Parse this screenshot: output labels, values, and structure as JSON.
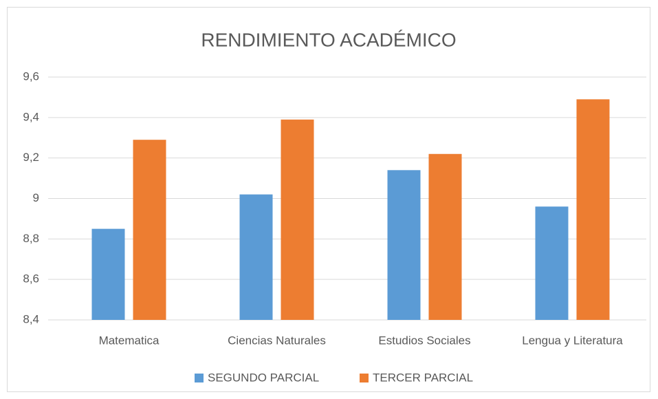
{
  "chart_data": {
    "type": "bar",
    "title": "RENDIMIENTO ACADÉMICO",
    "categories": [
      "Matematica",
      "Ciencias Naturales",
      "Estudios Sociales",
      "Lengua y Literatura"
    ],
    "series": [
      {
        "name": "SEGUNDO PARCIAL",
        "color": "#5b9bd5",
        "values": [
          8.85,
          9.02,
          9.14,
          8.96
        ]
      },
      {
        "name": "TERCER PARCIAL",
        "color": "#ed7d31",
        "values": [
          9.29,
          9.39,
          9.22,
          9.49
        ]
      }
    ],
    "ylim": [
      8.4,
      9.6
    ],
    "yticks": [
      {
        "value": 8.4,
        "label": "8,4"
      },
      {
        "value": 8.6,
        "label": "8,6"
      },
      {
        "value": 8.8,
        "label": "8,8"
      },
      9,
      {
        "value": 9.2,
        "label": "9,2"
      },
      {
        "value": 9.4,
        "label": "9,4"
      },
      {
        "value": 9.6,
        "label": "9,6"
      }
    ],
    "grid": true,
    "legend": "bottom"
  }
}
